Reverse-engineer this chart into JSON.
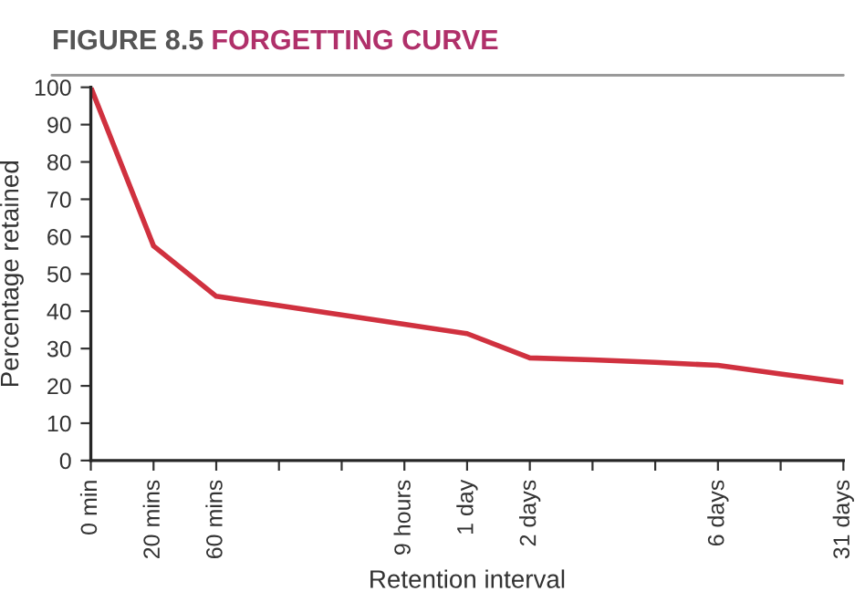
{
  "chart_data": {
    "type": "line",
    "title": "FIGURE 8.5",
    "subtitle": "FORGETTING CURVE",
    "xlabel": "Retention interval",
    "ylabel": "Percentage retained",
    "categories": [
      "0 min",
      "20 mins",
      "60 mins",
      null,
      null,
      "9 hours",
      "1 day",
      "2 days",
      null,
      null,
      "6 days",
      null,
      "31 days"
    ],
    "series": [
      {
        "color": "#d0313f",
        "values": [
          100,
          57.5,
          44,
          41.5,
          39,
          36.5,
          34,
          27.5,
          27,
          26.3,
          25.5,
          23.2,
          21
        ]
      }
    ],
    "ylim": [
      0,
      100
    ],
    "yticks": [
      0,
      10,
      20,
      30,
      40,
      50,
      60,
      70,
      80,
      90,
      100
    ],
    "grid": false,
    "legend": false,
    "marker": "none",
    "line_style": "solid"
  }
}
